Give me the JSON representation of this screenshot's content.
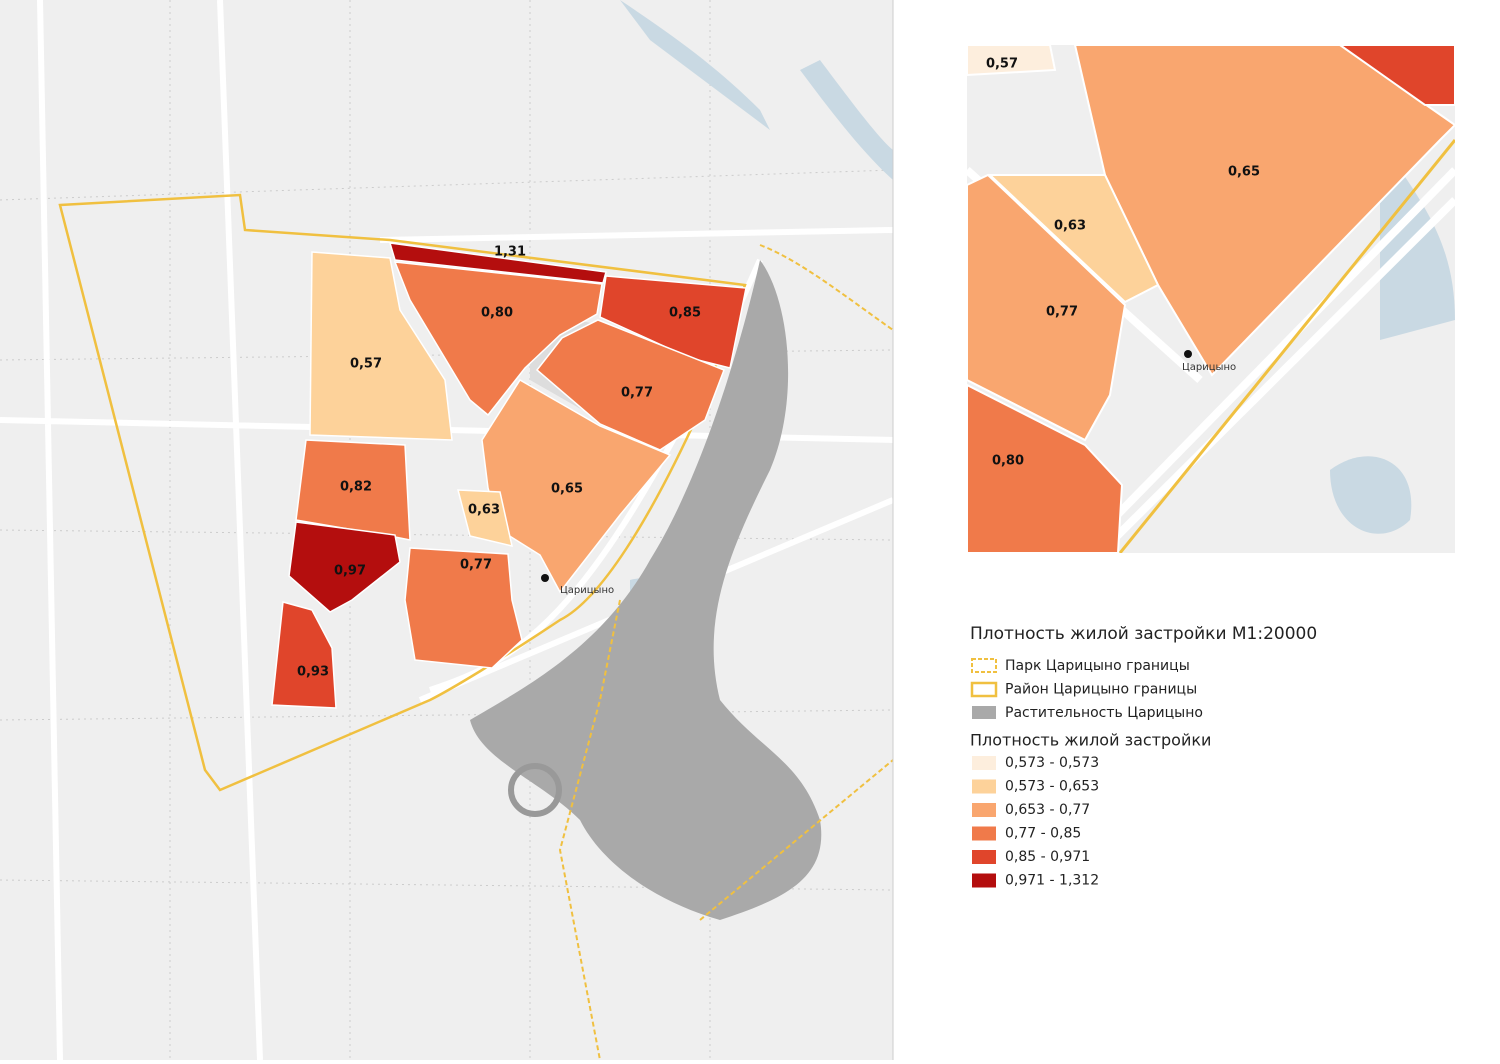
{
  "map": {
    "blocks": [
      {
        "label": "1,31"
      },
      {
        "label": "0,80"
      },
      {
        "label": "0,85"
      },
      {
        "label": "0,77"
      },
      {
        "label": "0,65"
      },
      {
        "label": "0,57"
      },
      {
        "label": "0,82"
      },
      {
        "label": "0,97"
      },
      {
        "label": "0,93"
      },
      {
        "label": "0,63"
      },
      {
        "label": "0,77"
      }
    ],
    "station": "Царицыно"
  },
  "inset": {
    "blocks": [
      {
        "label": "0,57"
      },
      {
        "label": "0,65"
      },
      {
        "label": "0,63"
      },
      {
        "label": "0,77"
      },
      {
        "label": "0,80"
      }
    ],
    "station": "Царицыно"
  },
  "legend": {
    "title": "Плотность жилой застройки М1:20000",
    "layers": [
      {
        "label": "Парк Царицыно границы"
      },
      {
        "label": "Район Царицыно границы"
      },
      {
        "label": "Растительность Царицыно"
      }
    ],
    "classes_title": "Плотность жилой застройки",
    "classes": [
      {
        "label": "0,573 - 0,573",
        "color": "#fdeedd"
      },
      {
        "label": "0,573 - 0,653",
        "color": "#fdd29a"
      },
      {
        "label": "0,653 - 0,77",
        "color": "#f9a66f"
      },
      {
        "label": "0,77 - 0,85",
        "color": "#f07a4a"
      },
      {
        "label": "0,85 - 0,971",
        "color": "#e0452b"
      },
      {
        "label": "0,971 - 1,312",
        "color": "#b40e0e"
      }
    ]
  }
}
